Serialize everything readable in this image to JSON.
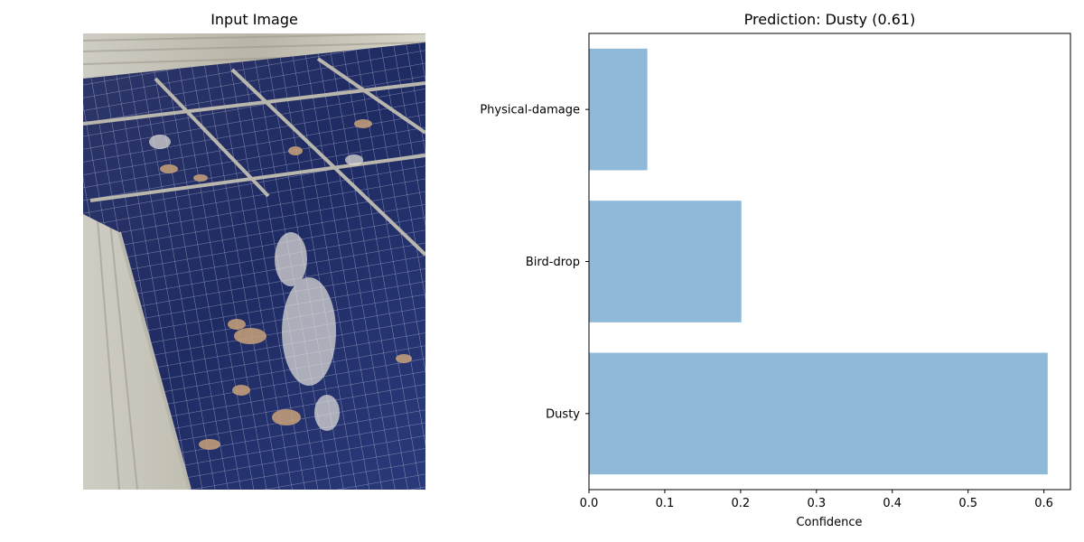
{
  "figure": {
    "left_title": "Input Image"
  },
  "chart_data": {
    "type": "bar",
    "orientation": "horizontal",
    "title": "Prediction: Dusty (0.61)",
    "xlabel": "Confidence",
    "ylabel": "",
    "categories": [
      "Dusty",
      "Bird-drop",
      "Physical-damage"
    ],
    "values": [
      0.605,
      0.201,
      0.077
    ],
    "xlim": [
      0,
      0.635
    ],
    "xticks": [
      0.0,
      0.1,
      0.2,
      0.3,
      0.4,
      0.5,
      0.6
    ],
    "xtick_labels": [
      "0.0",
      "0.1",
      "0.2",
      "0.3",
      "0.4",
      "0.5",
      "0.6"
    ],
    "bar_color": "#8fb9d9",
    "grid": false,
    "legend": "none"
  }
}
